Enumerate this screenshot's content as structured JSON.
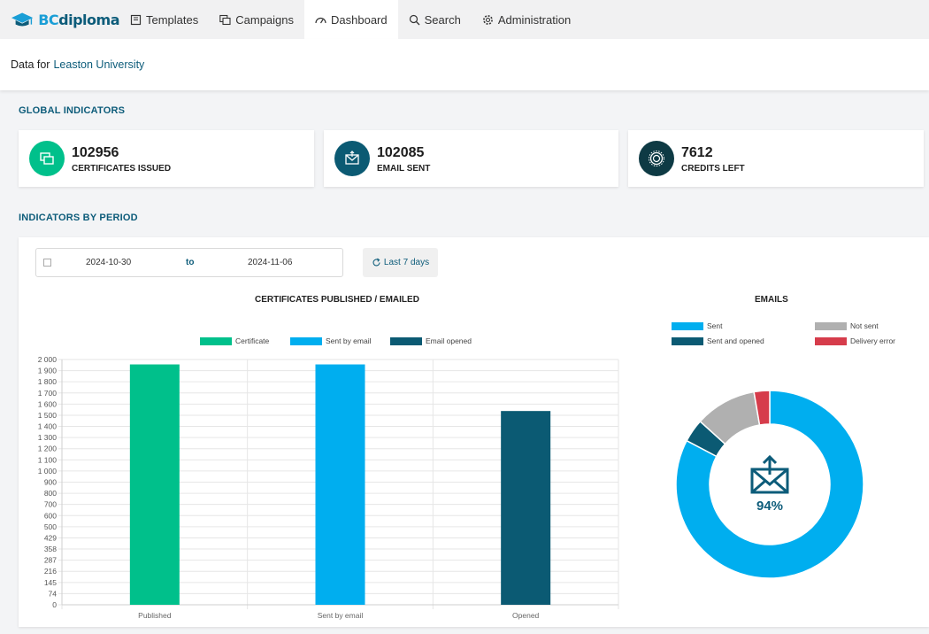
{
  "nav": {
    "logo": {
      "bc": "BC",
      "diploma": "diploma"
    },
    "items": [
      {
        "label": "Templates",
        "icon": "template-icon",
        "active": false
      },
      {
        "label": "Campaigns",
        "icon": "campaigns-icon",
        "active": false
      },
      {
        "label": "Dashboard",
        "icon": "dashboard-icon",
        "active": true
      },
      {
        "label": "Search",
        "icon": "search-icon",
        "active": false
      },
      {
        "label": "Administration",
        "icon": "gear-icon",
        "active": false
      }
    ]
  },
  "subheader": {
    "prefix": "Data for",
    "university": "Leaston University"
  },
  "sections": {
    "global": "GLOBAL INDICATORS",
    "period": "INDICATORS BY PERIOD"
  },
  "kpis": [
    {
      "value": "102956",
      "label": "CERTIFICATES ISSUED",
      "icon": "certificates-icon",
      "color": "#00c08b"
    },
    {
      "value": "102085",
      "label": "EMAIL SENT",
      "icon": "email-icon",
      "color": "#0b5a73"
    },
    {
      "value": "7612",
      "label": "CREDITS LEFT",
      "icon": "credits-icon",
      "color": "#0e3a44"
    }
  ],
  "filters": {
    "from": "2024-10-30",
    "to_label": "to",
    "to": "2024-11-06",
    "preset_label": "Last 7 days"
  },
  "chart_data": [
    {
      "type": "bar",
      "title": "CERTIFICATES PUBLISHED / EMAILED",
      "categories": [
        "Published",
        "Sent by email",
        "Opened"
      ],
      "series": [
        {
          "name": "Certificate",
          "color": "#00c08b",
          "values": [
            1960,
            0,
            0
          ]
        },
        {
          "name": "Sent by email",
          "color": "#00aeef",
          "values": [
            0,
            1960,
            0
          ]
        },
        {
          "name": "Email opened",
          "color": "#0b5a73",
          "values": [
            0,
            0,
            1580
          ]
        }
      ],
      "yticks": [
        "0",
        "74",
        "145",
        "216",
        "287",
        "358",
        "429",
        "500",
        "600",
        "700",
        "800",
        "900",
        "1 000",
        "1 100",
        "1 200",
        "1 300",
        "1 400",
        "1 500",
        "1 600",
        "1 700",
        "1 800",
        "1 900",
        "2 000"
      ],
      "ylim": [
        0,
        2000
      ],
      "grid": true,
      "legend": "top"
    },
    {
      "type": "pie",
      "title": "EMAILS",
      "labels": [
        "Sent",
        "Not sent",
        "Sent and opened",
        "Delivery error"
      ],
      "colors": [
        "#00aeef",
        "#b0b0b0",
        "#0b5a73",
        "#d63c4b"
      ],
      "segments": [
        {
          "label": "Sent",
          "value": 82.7,
          "color": "#00aeef"
        },
        {
          "label": "Sent and opened",
          "value": 4.0,
          "color": "#0b5a73"
        },
        {
          "label": "Not sent",
          "value": 10.6,
          "color": "#b0b0b0"
        },
        {
          "label": "Delivery error",
          "value": 2.7,
          "color": "#d63c4b"
        }
      ],
      "center_label": "94%",
      "center_icon": "email-send-icon",
      "legend": "top"
    }
  ]
}
